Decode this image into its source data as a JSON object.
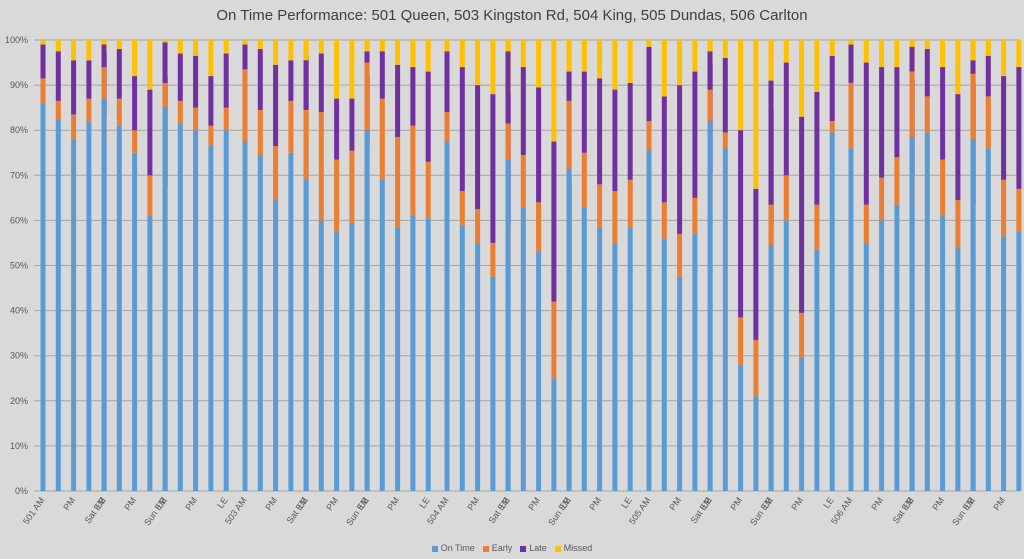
{
  "chart_data": {
    "type": "bar",
    "stacked": true,
    "title": "On Time Performance: 501 Queen, 503 Kingston Rd, 504 King, 505 Dundas, 506 Carlton",
    "xlabel": "",
    "ylabel": "",
    "ylim": [
      0,
      100
    ],
    "yticks": [
      "0%",
      "10%",
      "20%",
      "30%",
      "40%",
      "50%",
      "60%",
      "70%",
      "80%",
      "90%",
      "100%"
    ],
    "grid": true,
    "legend_position": "bottom",
    "series_names": [
      "On Time",
      "Early",
      "Late",
      "Missed"
    ],
    "colors": {
      "On Time": "#5b9bd5",
      "Early": "#ed7d31",
      "Late": "#7030a0",
      "Missed": "#ffc000"
    },
    "groups": [
      {
        "route": "501",
        "bars": [
          {
            "label": "501 AM",
            "v": [
              86,
              5.5,
              7.5,
              1
            ]
          },
          {
            "label": "",
            "v": [
              82.5,
              4,
              11,
              2.5
            ]
          },
          {
            "label": "PM",
            "v": [
              78,
              5.5,
              12,
              4.5
            ]
          },
          {
            "label": "",
            "v": [
              82,
              5,
              8.5,
              4.5
            ]
          },
          {
            "label": "LE",
            "v": [
              77,
              6,
              14,
              3
            ]
          },
          {
            "label": "Sat EM",
            "v": [
              87,
              7,
              5,
              1
            ]
          },
          {
            "label": "",
            "v": [
              81,
              6,
              11,
              2
            ]
          },
          {
            "label": "PM",
            "v": [
              75,
              5,
              12,
              8
            ]
          },
          {
            "label": "",
            "v": [
              61,
              9,
              19,
              11
            ]
          },
          {
            "label": "LE",
            "v": [
              58.5,
              9,
              24.5,
              8
            ]
          },
          {
            "label": "Sun EM",
            "v": [
              85,
              5.5,
              9,
              0.5
            ]
          },
          {
            "label": "",
            "v": [
              81.5,
              5,
              10.5,
              3
            ]
          },
          {
            "label": "PM",
            "v": [
              80,
              5,
              11.5,
              3.5
            ]
          },
          {
            "label": "",
            "v": [
              76.5,
              4.5,
              11,
              8
            ]
          },
          {
            "label": "LE",
            "v": [
              80,
              5,
              12,
              3
            ]
          }
        ]
      },
      {
        "route": "503",
        "bars": [
          {
            "label": "503 AM",
            "v": [
              77.5,
              16,
              5.5,
              1
            ]
          },
          {
            "label": "",
            "v": [
              74.5,
              10,
              13.5,
              2
            ]
          },
          {
            "label": "PM",
            "v": [
              64.5,
              12,
              18,
              5.5
            ]
          },
          {
            "label": "",
            "v": [
              75,
              11.5,
              9,
              4.5
            ]
          },
          {
            "label": "LE",
            "v": [
              77.5,
              7.5,
              11.5,
              3.5
            ]
          },
          {
            "label": "Sat EM",
            "v": [
              69,
              15.5,
              11,
              4.5
            ]
          },
          {
            "label": "",
            "v": [
              60,
              24,
              13,
              3
            ]
          },
          {
            "label": "PM",
            "v": [
              57.5,
              16,
              13.5,
              13
            ]
          },
          {
            "label": "",
            "v": [
              59.5,
              16,
              11.5,
              13
            ]
          },
          {
            "label": "LE",
            "v": [
              63.5,
              13,
              16,
              7.5
            ]
          },
          {
            "label": "Sun EM",
            "v": [
              80,
              15,
              2.5,
              2.5
            ]
          },
          {
            "label": "",
            "v": [
              69,
              18,
              10.5,
              2.5
            ]
          },
          {
            "label": "PM",
            "v": [
              58.5,
              20,
              16,
              5.5
            ]
          },
          {
            "label": "",
            "v": [
              61,
              20,
              13,
              6
            ]
          },
          {
            "label": "LE",
            "v": [
              60.5,
              12.5,
              20,
              7
            ]
          }
        ]
      },
      {
        "route": "504",
        "bars": [
          {
            "label": "504 AM",
            "v": [
              77.5,
              6.5,
              13.5,
              2.5
            ]
          },
          {
            "label": "",
            "v": [
              59,
              7.5,
              27.5,
              6
            ]
          },
          {
            "label": "PM",
            "v": [
              55,
              7.5,
              27.5,
              10
            ]
          },
          {
            "label": "",
            "v": [
              47.5,
              7.5,
              33,
              12
            ]
          },
          {
            "label": "LE",
            "v": [
              50.5,
              8.5,
              29,
              12
            ]
          },
          {
            "label": "Sat EM",
            "v": [
              73.5,
              8,
              16,
              2.5
            ]
          },
          {
            "label": "",
            "v": [
              63,
              11.5,
              19.5,
              6
            ]
          },
          {
            "label": "PM",
            "v": [
              53,
              11,
              25.5,
              10.5
            ]
          },
          {
            "label": "",
            "v": [
              25,
              17,
              35.5,
              22.5
            ]
          },
          {
            "label": "LE",
            "v": [
              22.5,
              15,
              32,
              30.5
            ]
          },
          {
            "label": "Sun EM",
            "v": [
              71.5,
              15,
              6.5,
              7
            ]
          },
          {
            "label": "",
            "v": [
              63,
              12,
              18,
              7
            ]
          },
          {
            "label": "PM",
            "v": [
              58.5,
              9.5,
              23.5,
              8.5
            ]
          },
          {
            "label": "",
            "v": [
              55,
              11.5,
              22.5,
              11
            ]
          },
          {
            "label": "LE",
            "v": [
              58.5,
              10.5,
              21.5,
              9.5
            ]
          }
        ]
      },
      {
        "route": "505",
        "bars": [
          {
            "label": "505 AM",
            "v": [
              75.5,
              6.5,
              16.5,
              1.5
            ]
          },
          {
            "label": "",
            "v": [
              56,
              8,
              23.5,
              12.5
            ]
          },
          {
            "label": "PM",
            "v": [
              47.5,
              9.5,
              33,
              10
            ]
          },
          {
            "label": "",
            "v": [
              57,
              8,
              28,
              7
            ]
          },
          {
            "label": "LE",
            "v": [
              63.5,
              7,
              24,
              5.5
            ]
          },
          {
            "label": "Sat EM",
            "v": [
              82,
              7,
              8.5,
              2.5
            ]
          },
          {
            "label": "",
            "v": [
              76,
              3.5,
              16.5,
              4
            ]
          },
          {
            "label": "PM",
            "v": [
              28,
              10.5,
              41.5,
              20
            ]
          },
          {
            "label": "",
            "v": [
              21,
              12.5,
              33.5,
              33
            ]
          },
          {
            "label": "LE",
            "v": [
              49.5,
              9,
              26,
              15.5
            ]
          },
          {
            "label": "Sun EM",
            "v": [
              54.5,
              9,
              27.5,
              9
            ]
          },
          {
            "label": "",
            "v": [
              60,
              10,
              25,
              5
            ]
          },
          {
            "label": "PM",
            "v": [
              29.5,
              10,
              43.5,
              17
            ]
          },
          {
            "label": "",
            "v": [
              53.5,
              10,
              25,
              11.5
            ]
          },
          {
            "label": "LE",
            "v": [
              79.5,
              2.5,
              14.5,
              3.5
            ]
          }
        ]
      },
      {
        "route": "506",
        "bars": [
          {
            "label": "506 AM",
            "v": [
              76,
              14.5,
              8.5,
              1
            ]
          },
          {
            "label": "",
            "v": [
              55,
              8.5,
              31.5,
              5
            ]
          },
          {
            "label": "PM",
            "v": [
              60,
              9.5,
              24.5,
              6
            ]
          },
          {
            "label": "",
            "v": [
              63.5,
              10.5,
              20,
              6
            ]
          },
          {
            "label": "LE",
            "v": [
              62,
              8,
              21.5,
              8.5
            ]
          },
          {
            "label": "Sat EM",
            "v": [
              78.5,
              14.5,
              5.5,
              1.5
            ]
          },
          {
            "label": "",
            "v": [
              79.5,
              8,
              10.5,
              2
            ]
          },
          {
            "label": "PM",
            "v": [
              61,
              12.5,
              20.5,
              6
            ]
          },
          {
            "label": "",
            "v": [
              54,
              10.5,
              23.5,
              12
            ]
          },
          {
            "label": "LE",
            "v": [
              52.5,
              11,
              27,
              9.5
            ]
          },
          {
            "label": "Sun EM",
            "v": [
              78,
              14.5,
              3,
              4.5
            ]
          },
          {
            "label": "",
            "v": [
              76,
              11.5,
              9,
              3.5
            ]
          },
          {
            "label": "PM",
            "v": [
              56.5,
              12.5,
              23,
              8
            ]
          },
          {
            "label": "",
            "v": [
              57.5,
              9.5,
              27,
              6
            ]
          },
          {
            "label": "LE",
            "v": [
              63.5,
              8,
              21.5,
              7
            ]
          }
        ]
      }
    ]
  }
}
